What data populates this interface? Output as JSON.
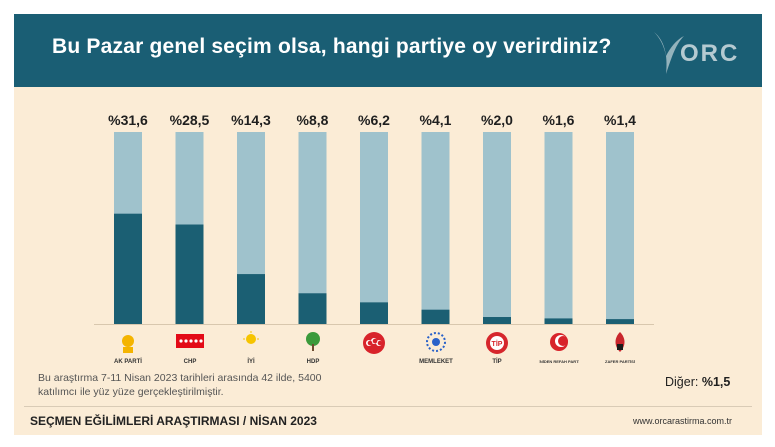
{
  "header": {
    "title": "Bu Pazar genel seçim olsa, hangi partiye oy verirdiniz?",
    "logo_text": "ORC"
  },
  "colors": {
    "header_bg": "#1a5e74",
    "panel_bg": "#fbecd6",
    "bar_fill": "#1b5f73",
    "bar_track": "#9fc2cc"
  },
  "chart_data": {
    "type": "bar",
    "categories": [
      "AK PARTİ",
      "CHP",
      "İYİ",
      "HDP",
      "MHP",
      "MEMLEKET",
      "TİP",
      "YENİDEN REFAH",
      "ZAFER"
    ],
    "values": [
      31.6,
      28.5,
      14.3,
      8.8,
      6.2,
      4.1,
      2.0,
      1.6,
      1.4
    ],
    "labels": [
      "%31,6",
      "%28,5",
      "%14,3",
      "%8,8",
      "%6,2",
      "%4,1",
      "%2,0",
      "%1,6",
      "%1,4"
    ],
    "title": "Bu Pazar genel seçim olsa, hangi partiye oy verirdiniz?",
    "xlabel": "",
    "ylabel": "",
    "grid": false,
    "other": {
      "label": "Diğer:",
      "value": "%1,5"
    }
  },
  "party_logos": [
    {
      "icon": "ak-parti-logo",
      "text": "AK PARTİ"
    },
    {
      "icon": "chp-logo",
      "text": "CHP"
    },
    {
      "icon": "iyi-logo",
      "text": "İYİ"
    },
    {
      "icon": "hdp-logo",
      "text": "HDP"
    },
    {
      "icon": "mhp-logo",
      "text": ""
    },
    {
      "icon": "memleket-logo",
      "text": "MEMLEKET"
    },
    {
      "icon": "tip-logo",
      "text": "TİP"
    },
    {
      "icon": "yeniden-refah-logo",
      "text": "YENİDEN REFAH PARTİSİ"
    },
    {
      "icon": "zafer-logo",
      "text": "ZAFER PARTİSİ"
    }
  ],
  "note": "Bu araştırma 7-11 Nisan 2023 tarihleri arasında 42 ilde, 5400 katılımcı ile yüz yüze gerçekleştirilmiştir.",
  "footer": {
    "left": "SEÇMEN EĞİLİMLERİ ARAŞTIRMASI / NİSAN 2023",
    "right": "www.orcarastirma.com.tr"
  }
}
